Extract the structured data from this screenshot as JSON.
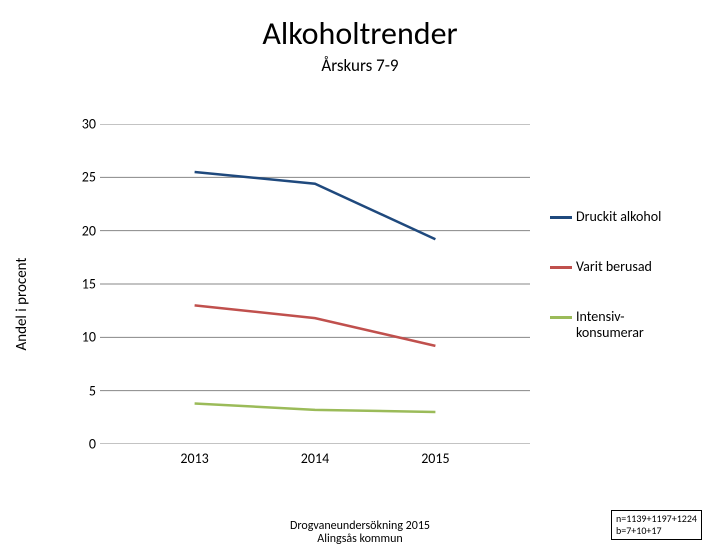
{
  "title": {
    "text": "Alkoholtrender",
    "fontsize": 32
  },
  "subtitle": {
    "text": "Årskurs 7-9",
    "fontsize": 17
  },
  "chart": {
    "type": "line",
    "ylabel": "Andel i procent",
    "ylabel_fontsize": 15,
    "ylim": [
      0,
      30
    ],
    "ytick_step": 5,
    "yticks": [
      0,
      5,
      10,
      15,
      20,
      25,
      30
    ],
    "tick_fontsize": 14,
    "categories": [
      "2013",
      "2014",
      "2015"
    ],
    "x_positions": [
      0.22,
      0.5,
      0.78
    ],
    "series": [
      {
        "name": "Druckit alkohol",
        "values": [
          25.5,
          24.4,
          19.2
        ],
        "color": "#1f497d",
        "width": 2.5
      },
      {
        "name": "Varit berusad",
        "values": [
          13.0,
          11.8,
          9.2
        ],
        "color": "#c0504d",
        "width": 2.5
      },
      {
        "name": "Intensiv-\nkonsumerar",
        "values": [
          3.8,
          3.2,
          3.0
        ],
        "color": "#9bbb59",
        "width": 2.5
      }
    ],
    "gridline_color": "#878787",
    "gridline_width": 1,
    "background_color": "#ffffff",
    "legend_fontsize": 14
  },
  "footer": {
    "center_line1": "Drogvaneundersökning 2015",
    "center_line2": "Alingsås kommun",
    "center_fontsize": 12,
    "box_line1": "n=1139+1197+1224",
    "box_line2": "b=7+10+17",
    "box_fontsize": 10
  }
}
